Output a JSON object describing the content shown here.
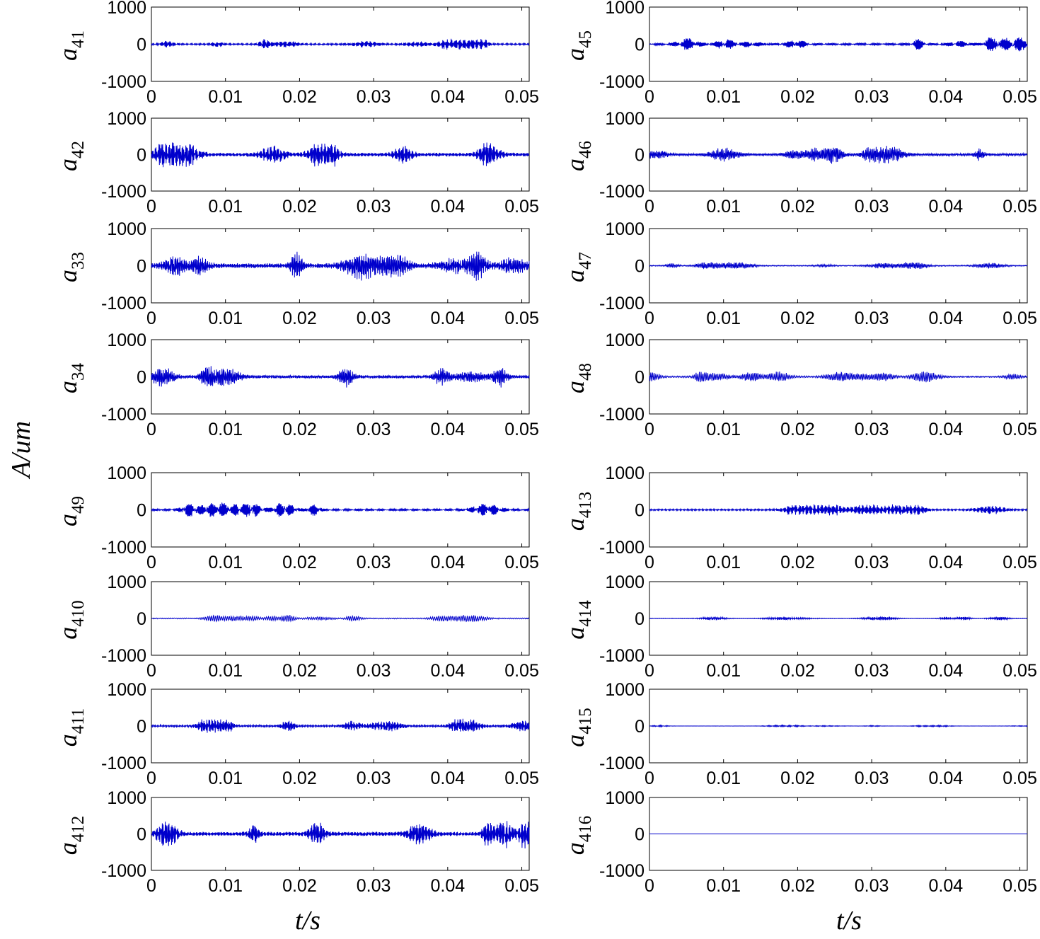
{
  "figure": {
    "y_axis_label": "A/um",
    "x_axis_label_left": "t/s",
    "x_axis_label_right": "t/s"
  },
  "chart_data": [
    {
      "type": "line",
      "signal_symbol": "a",
      "signal_subscript": "41",
      "column": "left",
      "x_unit": "s",
      "xlim": [
        0,
        0.051
      ],
      "ylim": [
        -1000,
        1000
      ],
      "xticks": [
        "0",
        "0.01",
        "0.02",
        "0.03",
        "0.04",
        "0.05"
      ],
      "yticks": [
        "1000",
        "0",
        "-1000"
      ],
      "grid": false,
      "approx_peak_amplitude": 150
    },
    {
      "type": "line",
      "signal_symbol": "a",
      "signal_subscript": "42",
      "column": "left",
      "x_unit": "s",
      "xlim": [
        0,
        0.051
      ],
      "ylim": [
        -1000,
        1000
      ],
      "xticks": [
        "0",
        "0.01",
        "0.02",
        "0.03",
        "0.04",
        "0.05"
      ],
      "yticks": [
        "1000",
        "0",
        "-1000"
      ],
      "grid": false,
      "approx_peak_amplitude": 350
    },
    {
      "type": "line",
      "signal_symbol": "a",
      "signal_subscript": "33",
      "column": "left",
      "x_unit": "s",
      "xlim": [
        0,
        0.051
      ],
      "ylim": [
        -1000,
        1000
      ],
      "xticks": [
        "0",
        "0.01",
        "0.02",
        "0.03",
        "0.04",
        "0.05"
      ],
      "yticks": [
        "1000",
        "0",
        "-1000"
      ],
      "grid": false,
      "approx_peak_amplitude": 450
    },
    {
      "type": "line",
      "signal_symbol": "a",
      "signal_subscript": "34",
      "column": "left",
      "x_unit": "s",
      "xlim": [
        0,
        0.051
      ],
      "ylim": [
        -1000,
        1000
      ],
      "xticks": [
        "0",
        "0.01",
        "0.02",
        "0.03",
        "0.04",
        "0.05"
      ],
      "yticks": [
        "1000",
        "0",
        "-1000"
      ],
      "grid": false,
      "approx_peak_amplitude": 300
    },
    {
      "type": "line",
      "signal_symbol": "a",
      "signal_subscript": "49",
      "column": "left",
      "x_unit": "s",
      "xlim": [
        0,
        0.051
      ],
      "ylim": [
        -1000,
        1000
      ],
      "xticks": [
        "0",
        "0.01",
        "0.02",
        "0.03",
        "0.04",
        "0.05"
      ],
      "yticks": [
        "1000",
        "0",
        "-1000"
      ],
      "grid": false,
      "approx_peak_amplitude": 200
    },
    {
      "type": "line",
      "signal_symbol": "a",
      "signal_subscript": "410",
      "column": "left",
      "x_unit": "s",
      "xlim": [
        0,
        0.051
      ],
      "ylim": [
        -1000,
        1000
      ],
      "xticks": [
        "0",
        "0.01",
        "0.02",
        "0.03",
        "0.04",
        "0.05"
      ],
      "yticks": [
        "1000",
        "0",
        "-1000"
      ],
      "grid": false,
      "approx_peak_amplitude": 100
    },
    {
      "type": "line",
      "signal_symbol": "a",
      "signal_subscript": "411",
      "column": "left",
      "x_unit": "s",
      "xlim": [
        0,
        0.051
      ],
      "ylim": [
        -1000,
        1000
      ],
      "xticks": [
        "0",
        "0.01",
        "0.02",
        "0.03",
        "0.04",
        "0.05"
      ],
      "yticks": [
        "1000",
        "0",
        "-1000"
      ],
      "grid": false,
      "approx_peak_amplitude": 200
    },
    {
      "type": "line",
      "signal_symbol": "a",
      "signal_subscript": "412",
      "column": "left",
      "x_unit": "s",
      "xlim": [
        0,
        0.051
      ],
      "ylim": [
        -1000,
        1000
      ],
      "xticks": [
        "0",
        "0.01",
        "0.02",
        "0.03",
        "0.04",
        "0.05"
      ],
      "yticks": [
        "1000",
        "0",
        "-1000"
      ],
      "grid": false,
      "approx_peak_amplitude": 400
    },
    {
      "type": "line",
      "signal_symbol": "a",
      "signal_subscript": "45",
      "column": "right",
      "x_unit": "s",
      "xlim": [
        0,
        0.051
      ],
      "ylim": [
        -1000,
        1000
      ],
      "xticks": [
        "0",
        "0.01",
        "0.02",
        "0.03",
        "0.04",
        "0.05"
      ],
      "yticks": [
        "1000",
        "0",
        "-1000"
      ],
      "grid": false,
      "approx_peak_amplitude": 200
    },
    {
      "type": "line",
      "signal_symbol": "a",
      "signal_subscript": "46",
      "column": "right",
      "x_unit": "s",
      "xlim": [
        0,
        0.051
      ],
      "ylim": [
        -1000,
        1000
      ],
      "xticks": [
        "0",
        "0.01",
        "0.02",
        "0.03",
        "0.04",
        "0.05"
      ],
      "yticks": [
        "1000",
        "0",
        "-1000"
      ],
      "grid": false,
      "approx_peak_amplitude": 250
    },
    {
      "type": "line",
      "signal_symbol": "a",
      "signal_subscript": "47",
      "column": "right",
      "x_unit": "s",
      "xlim": [
        0,
        0.051
      ],
      "ylim": [
        -1000,
        1000
      ],
      "xticks": [
        "0",
        "0.01",
        "0.02",
        "0.03",
        "0.04",
        "0.05"
      ],
      "yticks": [
        "1000",
        "0",
        "-1000"
      ],
      "grid": false,
      "approx_peak_amplitude": 100
    },
    {
      "type": "line",
      "signal_symbol": "a",
      "signal_subscript": "48",
      "column": "right",
      "x_unit": "s",
      "xlim": [
        0,
        0.051
      ],
      "ylim": [
        -1000,
        1000
      ],
      "xticks": [
        "0",
        "0.01",
        "0.02",
        "0.03",
        "0.04",
        "0.05"
      ],
      "yticks": [
        "1000",
        "0",
        "-1000"
      ],
      "grid": false,
      "approx_peak_amplitude": 150
    },
    {
      "type": "line",
      "signal_symbol": "a",
      "signal_subscript": "413",
      "column": "right",
      "x_unit": "s",
      "xlim": [
        0,
        0.051
      ],
      "ylim": [
        -1000,
        1000
      ],
      "xticks": [
        "0",
        "0.01",
        "0.02",
        "0.03",
        "0.04",
        "0.05"
      ],
      "yticks": [
        "1000",
        "0",
        "-1000"
      ],
      "grid": false,
      "approx_peak_amplitude": 150
    },
    {
      "type": "line",
      "signal_symbol": "a",
      "signal_subscript": "414",
      "column": "right",
      "x_unit": "s",
      "xlim": [
        0,
        0.051
      ],
      "ylim": [
        -1000,
        1000
      ],
      "xticks": [
        "0",
        "0.01",
        "0.02",
        "0.03",
        "0.04",
        "0.05"
      ],
      "yticks": [
        "1000",
        "0",
        "-1000"
      ],
      "grid": false,
      "approx_peak_amplitude": 50
    },
    {
      "type": "line",
      "signal_symbol": "a",
      "signal_subscript": "415",
      "column": "right",
      "x_unit": "s",
      "xlim": [
        0,
        0.051
      ],
      "ylim": [
        -1000,
        1000
      ],
      "xticks": [
        "0",
        "0.01",
        "0.02",
        "0.03",
        "0.04",
        "0.05"
      ],
      "yticks": [
        "1000",
        "0",
        "-1000"
      ],
      "grid": false,
      "approx_peak_amplitude": 20
    },
    {
      "type": "line",
      "signal_symbol": "a",
      "signal_subscript": "416",
      "column": "right",
      "x_unit": "s",
      "xlim": [
        0,
        0.051
      ],
      "ylim": [
        -1000,
        1000
      ],
      "xticks": [
        "0",
        "0.01",
        "0.02",
        "0.03",
        "0.04",
        "0.05"
      ],
      "yticks": [
        "1000",
        "0",
        "-1000"
      ],
      "grid": false,
      "approx_peak_amplitude": 0
    }
  ],
  "colors": {
    "trace": "#0000cc",
    "axes": "#000000",
    "background": "#ffffff"
  }
}
